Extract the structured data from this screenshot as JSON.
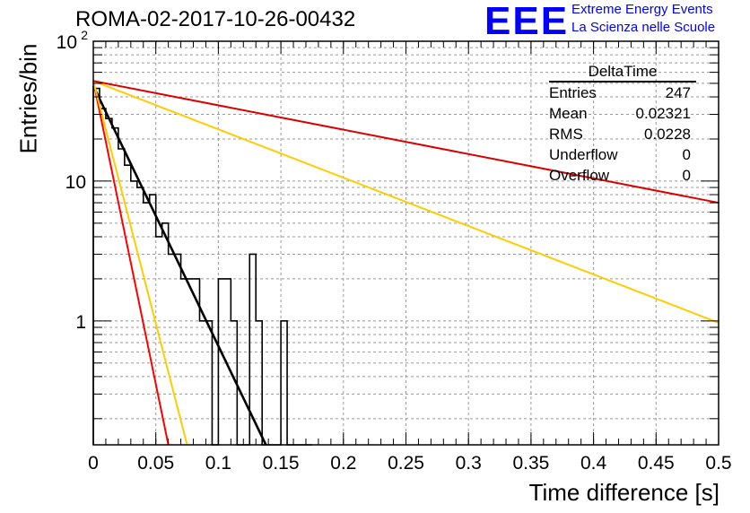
{
  "title": "ROMA-02-2017-10-26-00432",
  "logo": {
    "text": "EEE",
    "line1": "Extreme Energy Events",
    "line2": "La Scienza nelle Scuole"
  },
  "stats_box": {
    "title": "DeltaTime",
    "rows": [
      {
        "label": "Entries",
        "value": "247"
      },
      {
        "label": "Mean",
        "value": "0.02321"
      },
      {
        "label": "RMS",
        "value": "0.0228"
      },
      {
        "label": "Underflow",
        "value": "0"
      },
      {
        "label": "Overflow",
        "value": "0"
      }
    ]
  },
  "chart_data": {
    "type": "line",
    "xlabel": "Time difference [s]",
    "ylabel": "Entries/bin",
    "xlim": [
      0,
      0.5
    ],
    "ylim": [
      0.13,
      100
    ],
    "y_scale": "log",
    "grid": true,
    "x_ticks": [
      0,
      0.05,
      0.1,
      0.15,
      0.2,
      0.25,
      0.3,
      0.35,
      0.4,
      0.45,
      0.5
    ],
    "x_tick_labels": [
      "0",
      "0.05",
      "0.1",
      "0.15",
      "0.2",
      "0.25",
      "0.3",
      "0.35",
      "0.4",
      "0.45",
      "0.5"
    ],
    "y_tick_labels": [
      {
        "value": 1,
        "label": "1"
      },
      {
        "value": 10,
        "label": "10"
      },
      {
        "value": 100,
        "label": "10",
        "exponent": "2"
      }
    ],
    "histogram": {
      "name": "DeltaTime",
      "color": "#000000",
      "bin_width": 0.005,
      "edges_start": 0,
      "counts": [
        46,
        33,
        28,
        24,
        17,
        13,
        10,
        9,
        7,
        8,
        4,
        5,
        3,
        3,
        2,
        2,
        2,
        1,
        1,
        0,
        2,
        2,
        1,
        0,
        0,
        3,
        1,
        0,
        0,
        0,
        1,
        0,
        0,
        0,
        0
      ]
    },
    "fit_lines": [
      {
        "color": "#000000",
        "x": [
          0,
          0.138
        ],
        "y": [
          48,
          0.13
        ]
      },
      {
        "color": "#ff0000",
        "x": [
          0,
          0.06
        ],
        "y": [
          52,
          0.13
        ]
      },
      {
        "color": "#ffcc00",
        "x": [
          0,
          0.075
        ],
        "y": [
          52,
          0.13
        ]
      },
      {
        "color": "#ffcc00",
        "x": [
          0,
          0.5
        ],
        "y": [
          52,
          0.97
        ]
      },
      {
        "color": "#dd0000",
        "x": [
          0,
          0.5
        ],
        "y": [
          52,
          7
        ]
      }
    ]
  }
}
